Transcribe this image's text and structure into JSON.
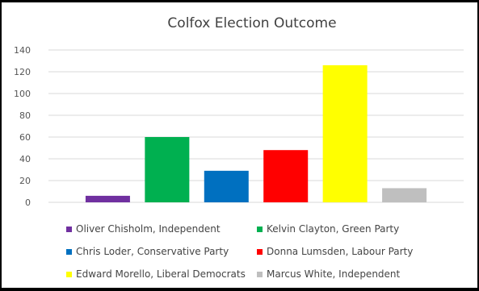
{
  "chart_data": {
    "type": "bar",
    "title": "Colfox Election Outcome",
    "xlabel": "",
    "ylabel": "",
    "ylim": [
      0,
      140
    ],
    "yticks": [
      0,
      20,
      40,
      60,
      80,
      100,
      120,
      140
    ],
    "grid": true,
    "legend_position": "bottom",
    "categories": [
      "Oliver Chisholm, Independent",
      "Kelvin Clayton, Green Party",
      "Chris Loder,  Conservative Party",
      "Donna Lumsden, Labour Party",
      "Edward Morello, Liberal Democrats",
      "Marcus White, Independent"
    ],
    "values": [
      6,
      60,
      29,
      48,
      126,
      13
    ],
    "colors": [
      "#7030A0",
      "#00B050",
      "#0070C0",
      "#FF0000",
      "#FFFF00",
      "#BFBFBF"
    ],
    "legend": [
      {
        "label": "Oliver Chisholm, Independent"
      },
      {
        "label": "Kelvin Clayton, Green Party"
      },
      {
        "label": "Chris Loder,  Conservative Party"
      },
      {
        "label": "Donna Lumsden, Labour Party"
      },
      {
        "label": "Edward Morello, Liberal Democrats"
      },
      {
        "label": "Marcus White, Independent"
      }
    ]
  }
}
